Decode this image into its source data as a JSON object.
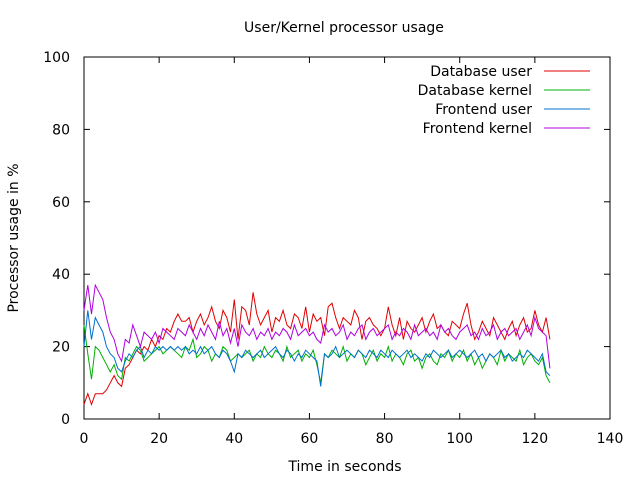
{
  "chart_data": {
    "type": "line",
    "title": "User/Kernel processor usage",
    "xlabel": "Time in seconds",
    "ylabel": "Processor usage in %",
    "xlim": [
      0,
      140
    ],
    "ylim": [
      0,
      100
    ],
    "xticks": [
      0,
      20,
      40,
      60,
      80,
      100,
      120,
      140
    ],
    "yticks": [
      0,
      20,
      40,
      60,
      80,
      100
    ],
    "grid": false,
    "legend_position": "top-right",
    "series": [
      {
        "name": "Database user",
        "color": "#e00000",
        "x": [
          0,
          1,
          2,
          3,
          4,
          5,
          6,
          7,
          8,
          9,
          10,
          11,
          12,
          13,
          14,
          15,
          16,
          17,
          18,
          19,
          20,
          21,
          22,
          23,
          24,
          25,
          26,
          27,
          28,
          29,
          30,
          31,
          32,
          33,
          34,
          35,
          36,
          37,
          38,
          39,
          40,
          41,
          42,
          43,
          44,
          45,
          46,
          47,
          48,
          49,
          50,
          51,
          52,
          53,
          54,
          55,
          56,
          57,
          58,
          59,
          60,
          61,
          62,
          63,
          64,
          65,
          66,
          67,
          68,
          69,
          70,
          71,
          72,
          73,
          74,
          75,
          76,
          77,
          78,
          79,
          80,
          81,
          82,
          83,
          84,
          85,
          86,
          87,
          88,
          89,
          90,
          91,
          92,
          93,
          94,
          95,
          96,
          97,
          98,
          99,
          100,
          101,
          102,
          103,
          104,
          105,
          106,
          107,
          108,
          109,
          110,
          111,
          112,
          113,
          114,
          115,
          116,
          117,
          118,
          119,
          120,
          121,
          122,
          123,
          124
        ],
        "values": [
          4,
          7,
          4,
          7,
          7,
          7,
          8,
          10,
          12,
          10,
          9,
          14,
          15,
          17,
          19,
          18,
          20,
          19,
          22,
          20,
          23,
          22,
          25,
          24,
          27,
          29,
          27,
          27,
          28,
          24,
          27,
          29,
          26,
          28,
          31,
          27,
          25,
          30,
          28,
          24,
          33,
          22,
          31,
          30,
          26,
          35,
          29,
          26,
          28,
          30,
          24,
          28,
          27,
          30,
          26,
          25,
          29,
          28,
          25,
          31,
          24,
          29,
          27,
          28,
          23,
          31,
          32,
          28,
          25,
          28,
          27,
          26,
          30,
          28,
          22,
          27,
          28,
          26,
          25,
          23,
          25,
          31,
          26,
          23,
          28,
          22,
          27,
          25,
          24,
          26,
          28,
          24,
          27,
          29,
          25,
          26,
          24,
          23,
          27,
          26,
          25,
          29,
          32,
          26,
          22,
          24,
          27,
          25,
          23,
          28,
          26,
          24,
          22,
          25,
          27,
          23,
          26,
          28,
          24,
          25,
          30,
          26,
          24,
          28,
          22
        ]
      },
      {
        "name": "Database kernel",
        "color": "#00b000",
        "x": [
          0,
          1,
          2,
          3,
          4,
          5,
          6,
          7,
          8,
          9,
          10,
          11,
          12,
          13,
          14,
          15,
          16,
          17,
          18,
          19,
          20,
          21,
          22,
          23,
          24,
          25,
          26,
          27,
          28,
          29,
          30,
          31,
          32,
          33,
          34,
          35,
          36,
          37,
          38,
          39,
          40,
          41,
          42,
          43,
          44,
          45,
          46,
          47,
          48,
          49,
          50,
          51,
          52,
          53,
          54,
          55,
          56,
          57,
          58,
          59,
          60,
          61,
          62,
          63,
          64,
          65,
          66,
          67,
          68,
          69,
          70,
          71,
          72,
          73,
          74,
          75,
          76,
          77,
          78,
          79,
          80,
          81,
          82,
          83,
          84,
          85,
          86,
          87,
          88,
          89,
          90,
          91,
          92,
          93,
          94,
          95,
          96,
          97,
          98,
          99,
          100,
          101,
          102,
          103,
          104,
          105,
          106,
          107,
          108,
          109,
          110,
          111,
          112,
          113,
          114,
          115,
          116,
          117,
          118,
          119,
          120,
          121,
          122,
          123,
          124
        ],
        "values": [
          26,
          18,
          11,
          20,
          19,
          17,
          15,
          13,
          15,
          12,
          11,
          17,
          16,
          18,
          20,
          19,
          16,
          17,
          18,
          19,
          20,
          18,
          19,
          20,
          19,
          18,
          17,
          20,
          19,
          22,
          17,
          18,
          20,
          19,
          16,
          18,
          17,
          20,
          19,
          16,
          17,
          18,
          17,
          18,
          19,
          16,
          18,
          17,
          20,
          18,
          17,
          19,
          18,
          16,
          20,
          17,
          18,
          19,
          16,
          18,
          17,
          19,
          15,
          10,
          18,
          17,
          19,
          18,
          17,
          20,
          16,
          18,
          17,
          19,
          18,
          15,
          17,
          19,
          16,
          18,
          17,
          20,
          16,
          18,
          17,
          15,
          18,
          19,
          16,
          17,
          14,
          17,
          18,
          16,
          15,
          18,
          17,
          19,
          16,
          18,
          17,
          19,
          16,
          18,
          15,
          17,
          14,
          16,
          18,
          17,
          15,
          19,
          16,
          18,
          17,
          16,
          19,
          15,
          17,
          18,
          16,
          15,
          17,
          12,
          10
        ]
      },
      {
        "name": "Frontend user",
        "color": "#0070d0",
        "x": [
          0,
          1,
          2,
          3,
          4,
          5,
          6,
          7,
          8,
          9,
          10,
          11,
          12,
          13,
          14,
          15,
          16,
          17,
          18,
          19,
          20,
          21,
          22,
          23,
          24,
          25,
          26,
          27,
          28,
          29,
          30,
          31,
          32,
          33,
          34,
          35,
          36,
          37,
          38,
          39,
          40,
          41,
          42,
          43,
          44,
          45,
          46,
          47,
          48,
          49,
          50,
          51,
          52,
          53,
          54,
          55,
          56,
          57,
          58,
          59,
          60,
          61,
          62,
          63,
          64,
          65,
          66,
          67,
          68,
          69,
          70,
          71,
          72,
          73,
          74,
          75,
          76,
          77,
          78,
          79,
          80,
          81,
          82,
          83,
          84,
          85,
          86,
          87,
          88,
          89,
          90,
          91,
          92,
          93,
          94,
          95,
          96,
          97,
          98,
          99,
          100,
          101,
          102,
          103,
          104,
          105,
          106,
          107,
          108,
          109,
          110,
          111,
          112,
          113,
          114,
          115,
          116,
          117,
          118,
          119,
          120,
          121,
          122,
          123,
          124
        ],
        "values": [
          20,
          30,
          22,
          28,
          26,
          24,
          20,
          18,
          17,
          14,
          13,
          16,
          18,
          17,
          19,
          20,
          17,
          19,
          18,
          20,
          19,
          20,
          19,
          20,
          19,
          20,
          19,
          20,
          18,
          19,
          18,
          20,
          18,
          19,
          20,
          18,
          17,
          19,
          18,
          16,
          13,
          18,
          17,
          19,
          18,
          17,
          18,
          19,
          17,
          18,
          19,
          20,
          18,
          17,
          19,
          18,
          16,
          18,
          17,
          19,
          18,
          17,
          16,
          9,
          18,
          17,
          18,
          20,
          17,
          18,
          19,
          18,
          17,
          19,
          18,
          17,
          19,
          18,
          17,
          19,
          18,
          17,
          19,
          18,
          17,
          18,
          19,
          17,
          18,
          17,
          16,
          18,
          17,
          19,
          18,
          17,
          18,
          19,
          17,
          18,
          19,
          18,
          17,
          18,
          19,
          17,
          18,
          16,
          18,
          17,
          18,
          19,
          17,
          18,
          16,
          17,
          18,
          17,
          19,
          18,
          17,
          16,
          18,
          13,
          12
        ]
      },
      {
        "name": "Frontend kernel",
        "color": "#b000e0",
        "x": [
          0,
          1,
          2,
          3,
          4,
          5,
          6,
          7,
          8,
          9,
          10,
          11,
          12,
          13,
          14,
          15,
          16,
          17,
          18,
          19,
          20,
          21,
          22,
          23,
          24,
          25,
          26,
          27,
          28,
          29,
          30,
          31,
          32,
          33,
          34,
          35,
          36,
          37,
          38,
          39,
          40,
          41,
          42,
          43,
          44,
          45,
          46,
          47,
          48,
          49,
          50,
          51,
          52,
          53,
          54,
          55,
          56,
          57,
          58,
          59,
          60,
          61,
          62,
          63,
          64,
          65,
          66,
          67,
          68,
          69,
          70,
          71,
          72,
          73,
          74,
          75,
          76,
          77,
          78,
          79,
          80,
          81,
          82,
          83,
          84,
          85,
          86,
          87,
          88,
          89,
          90,
          91,
          92,
          93,
          94,
          95,
          96,
          97,
          98,
          99,
          100,
          101,
          102,
          103,
          104,
          105,
          106,
          107,
          108,
          109,
          110,
          111,
          112,
          113,
          114,
          115,
          116,
          117,
          118,
          119,
          120,
          121,
          122,
          123,
          124
        ],
        "values": [
          30,
          37,
          29,
          37,
          35,
          33,
          28,
          24,
          22,
          18,
          16,
          22,
          21,
          26,
          23,
          20,
          24,
          23,
          22,
          24,
          21,
          25,
          24,
          23,
          22,
          25,
          24,
          23,
          26,
          24,
          22,
          25,
          23,
          26,
          24,
          22,
          27,
          23,
          25,
          21,
          25,
          20,
          26,
          24,
          23,
          25,
          22,
          24,
          23,
          25,
          22,
          24,
          23,
          25,
          24,
          22,
          26,
          23,
          24,
          25,
          23,
          24,
          22,
          21,
          26,
          24,
          25,
          23,
          24,
          26,
          22,
          24,
          23,
          25,
          26,
          22,
          24,
          25,
          23,
          24,
          25,
          26,
          22,
          24,
          23,
          25,
          24,
          22,
          26,
          23,
          24,
          25,
          23,
          24,
          22,
          26,
          24,
          25,
          23,
          22,
          24,
          25,
          26,
          23,
          24,
          22,
          25,
          23,
          24,
          26,
          22,
          24,
          25,
          23,
          24,
          25,
          22,
          24,
          26,
          23,
          28,
          25,
          24,
          23,
          14
        ]
      }
    ]
  }
}
